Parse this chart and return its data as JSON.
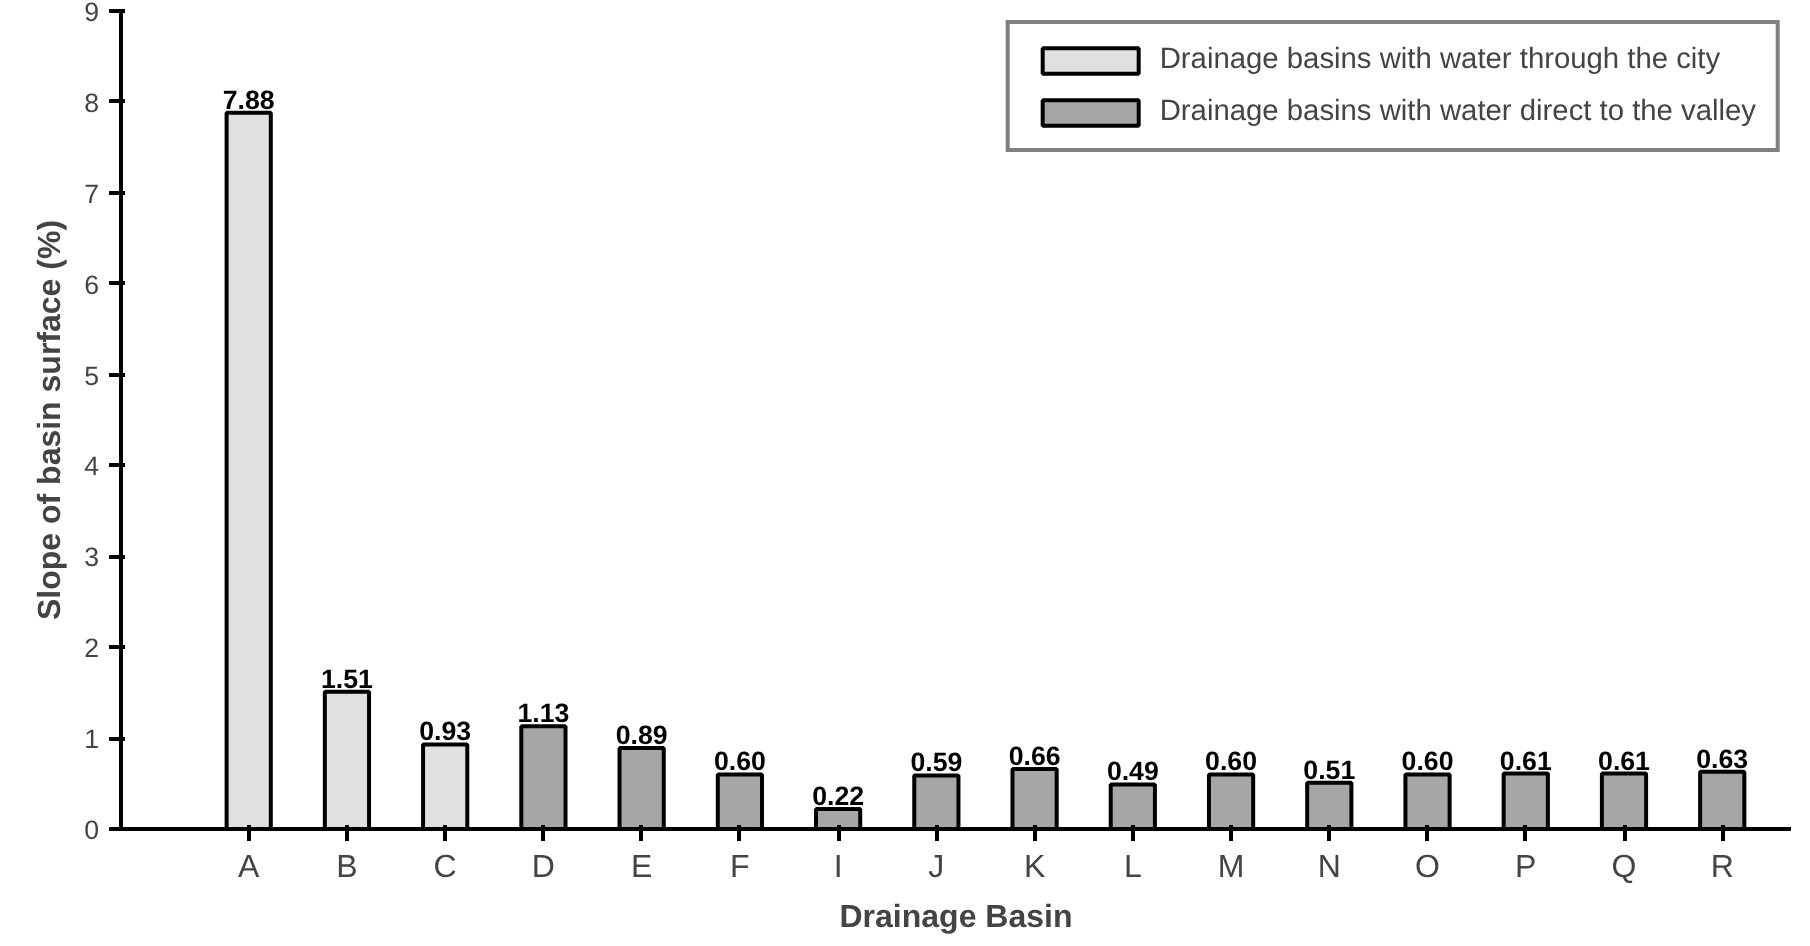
{
  "chart_data": {
    "type": "bar",
    "xlabel": "Drainage Basin",
    "ylabel": "Slope of basin surface (%)",
    "categories": [
      "A",
      "B",
      "C",
      "D",
      "E",
      "F",
      "I",
      "J",
      "K",
      "L",
      "M",
      "N",
      "O",
      "P",
      "Q",
      "R"
    ],
    "series": [
      {
        "name": "Drainage basins with water through the city",
        "color": "#e0e0e0",
        "values": [
          7.88,
          1.51,
          0.93,
          null,
          null,
          null,
          null,
          null,
          null,
          null,
          null,
          null,
          null,
          null,
          null,
          null
        ],
        "value_labels": [
          "7.88",
          "1.51",
          "0.93",
          null,
          null,
          null,
          null,
          null,
          null,
          null,
          null,
          null,
          null,
          null,
          null,
          null
        ]
      },
      {
        "name": "Drainage basins with water direct to the valley",
        "color": "#a6a6a6",
        "values": [
          null,
          null,
          null,
          1.13,
          0.89,
          0.6,
          0.22,
          0.59,
          0.66,
          0.49,
          0.6,
          0.51,
          0.6,
          0.61,
          0.61,
          0.63
        ],
        "value_labels": [
          null,
          null,
          null,
          "1.13",
          "0.89",
          "0.60",
          "0.22",
          "0.59",
          "0.66",
          "0.49",
          "0.60",
          "0.51",
          "0.60",
          "0.61",
          "0.61",
          "0.63"
        ]
      }
    ],
    "ylim": [
      0,
      9
    ],
    "yticks": [
      0,
      1,
      2,
      3,
      4,
      5,
      6,
      7,
      8,
      9
    ],
    "grid": false,
    "legend": "top right"
  }
}
